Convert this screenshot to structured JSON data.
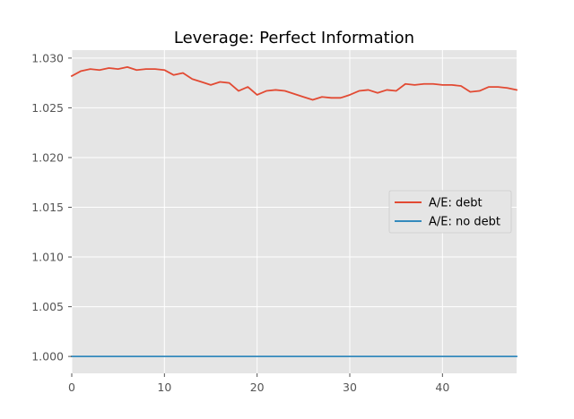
{
  "chart_data": {
    "type": "line",
    "title": "Leverage: Perfect Information",
    "xlabel": "",
    "ylabel": "",
    "xlim": [
      0,
      48
    ],
    "ylim": [
      0.9983,
      1.0308
    ],
    "x_ticks": [
      0,
      10,
      20,
      30,
      40
    ],
    "y_ticks": [
      1.0,
      1.005,
      1.01,
      1.015,
      1.02,
      1.025,
      1.03
    ],
    "grid": true,
    "legend_position": "center-right",
    "x": [
      0,
      1,
      2,
      3,
      4,
      5,
      6,
      7,
      8,
      9,
      10,
      11,
      12,
      13,
      14,
      15,
      16,
      17,
      18,
      19,
      20,
      21,
      22,
      23,
      24,
      25,
      26,
      27,
      28,
      29,
      30,
      31,
      32,
      33,
      34,
      35,
      36,
      37,
      38,
      39,
      40,
      41,
      42,
      43,
      44,
      45,
      46,
      47,
      48
    ],
    "series": [
      {
        "name": "A/E: debt",
        "color": "#e24a33",
        "values": [
          1.0282,
          1.0287,
          1.0289,
          1.0288,
          1.029,
          1.0289,
          1.0291,
          1.0288,
          1.0289,
          1.0289,
          1.0288,
          1.0283,
          1.0285,
          1.0279,
          1.0276,
          1.0273,
          1.0276,
          1.0275,
          1.0267,
          1.0271,
          1.0263,
          1.0267,
          1.0268,
          1.0267,
          1.0264,
          1.0261,
          1.0258,
          1.0261,
          1.026,
          1.026,
          1.0263,
          1.0267,
          1.0268,
          1.0265,
          1.0268,
          1.0267,
          1.0274,
          1.0273,
          1.0274,
          1.0274,
          1.0273,
          1.0273,
          1.0272,
          1.0266,
          1.0267,
          1.0271,
          1.0271,
          1.027,
          1.0268
        ]
      },
      {
        "name": "A/E: no debt",
        "color": "#348abd",
        "values": [
          1.0,
          1.0,
          1.0,
          1.0,
          1.0,
          1.0,
          1.0,
          1.0,
          1.0,
          1.0,
          1.0,
          1.0,
          1.0,
          1.0,
          1.0,
          1.0,
          1.0,
          1.0,
          1.0,
          1.0,
          1.0,
          1.0,
          1.0,
          1.0,
          1.0,
          1.0,
          1.0,
          1.0,
          1.0,
          1.0,
          1.0,
          1.0,
          1.0,
          1.0,
          1.0,
          1.0,
          1.0,
          1.0,
          1.0,
          1.0,
          1.0,
          1.0,
          1.0,
          1.0,
          1.0,
          1.0,
          1.0,
          1.0,
          1.0
        ]
      }
    ]
  }
}
